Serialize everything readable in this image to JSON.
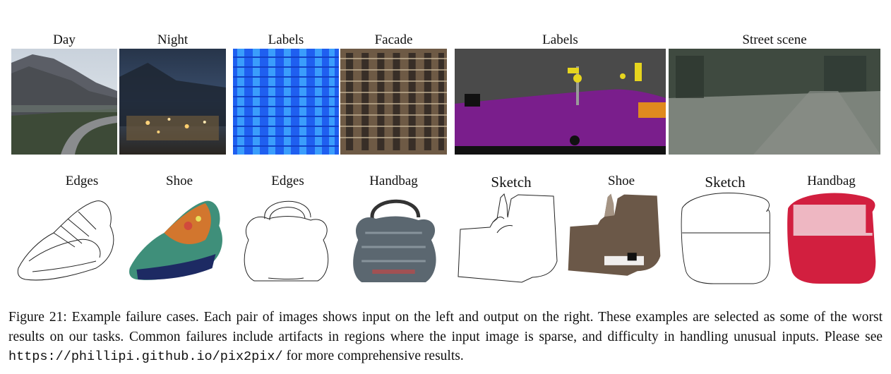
{
  "row1": {
    "labels": [
      "Day",
      "Night",
      "Labels",
      "Facade",
      "Labels",
      "Street scene"
    ]
  },
  "row2": {
    "labels": [
      "Edges",
      "Shoe",
      "Edges",
      "Handbag",
      "Sketch",
      "Shoe",
      "Sketch",
      "Handbag"
    ]
  },
  "caption": {
    "prefix": "Figure 21: Example failure cases. Each pair of images shows input on the left and output on the right. These examples are selected as some of the worst results on our tasks. Common failures include artifacts in regions where the input image is sparse, and difficulty in handling unusual inputs. Please see ",
    "url": "https://phillipi.github.io/pix2pix/",
    "suffix": " for more comprehensive results."
  },
  "colors": {
    "label_blue": "#1f5ff0",
    "facade_brown": "#6e5a45",
    "scene_gray": "#4a4a4a",
    "scene_purple": "#7a1e8c",
    "street_green": "#5c6a5a"
  }
}
